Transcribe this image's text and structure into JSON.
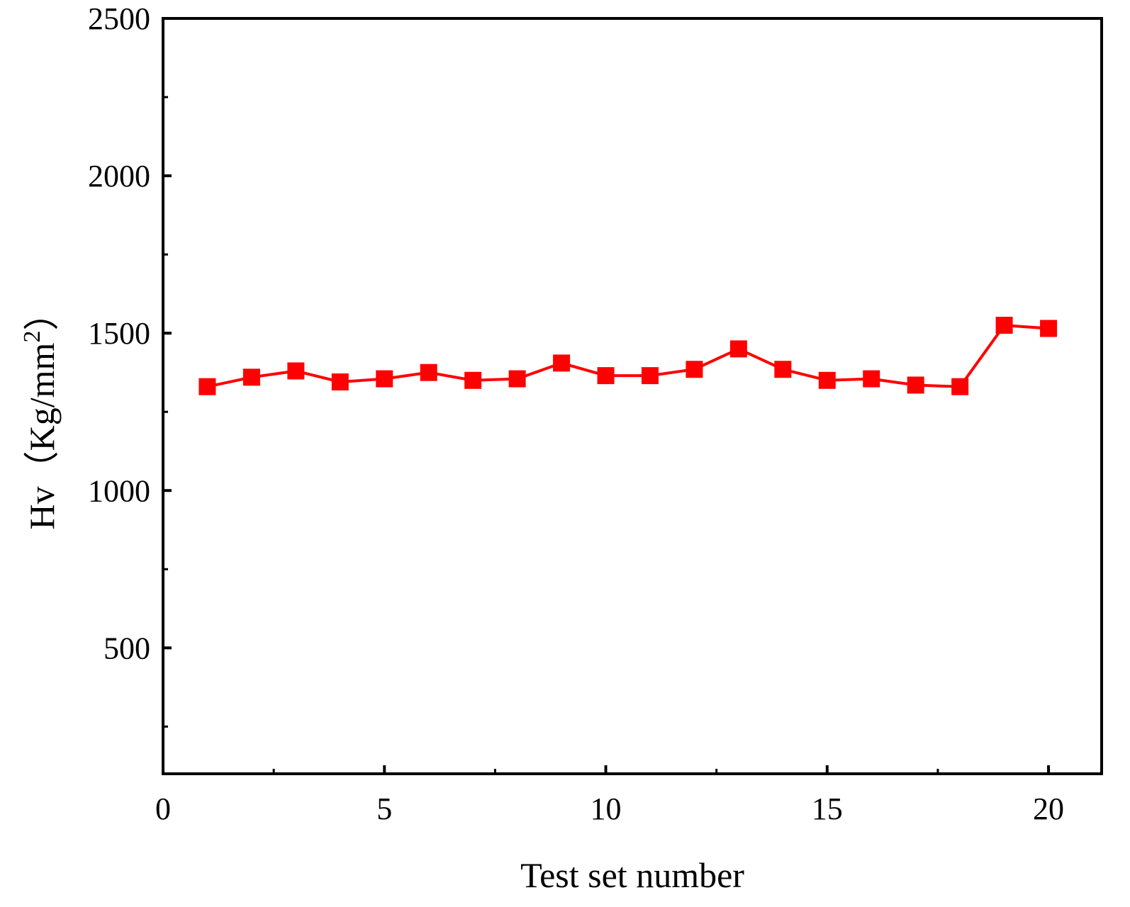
{
  "chart_data": {
    "type": "line",
    "title": "",
    "xlabel": "Test set number",
    "ylabel": "Hv（Kg/mm",
    "ylabel_superscript": "2",
    "ylabel_close": "）",
    "xlim": [
      0,
      21.2
    ],
    "ylim": [
      100,
      2500
    ],
    "x_ticks": [
      0,
      5,
      10,
      15,
      20
    ],
    "x_tick_labels": [
      "0",
      "5",
      "10",
      "15",
      "20"
    ],
    "x_minor_ticks": [
      2.5,
      7.5,
      12.5,
      17.5
    ],
    "y_ticks": [
      500,
      1000,
      1500,
      2000,
      2500
    ],
    "y_tick_labels": [
      "500",
      "1000",
      "1500",
      "2000",
      "2500"
    ],
    "y_minor_ticks": [
      250,
      750,
      1250,
      1750,
      2250
    ],
    "grid": false,
    "series": [
      {
        "color": "#ff0000",
        "marker": "square",
        "x": [
          1,
          2,
          3,
          4,
          5,
          6,
          7,
          8,
          9,
          10,
          11,
          12,
          13,
          14,
          15,
          16,
          17,
          18,
          19,
          20
        ],
        "y": [
          1330,
          1360,
          1380,
          1345,
          1355,
          1375,
          1350,
          1355,
          1405,
          1365,
          1365,
          1385,
          1450,
          1385,
          1350,
          1355,
          1335,
          1330,
          1525,
          1515
        ]
      }
    ]
  }
}
